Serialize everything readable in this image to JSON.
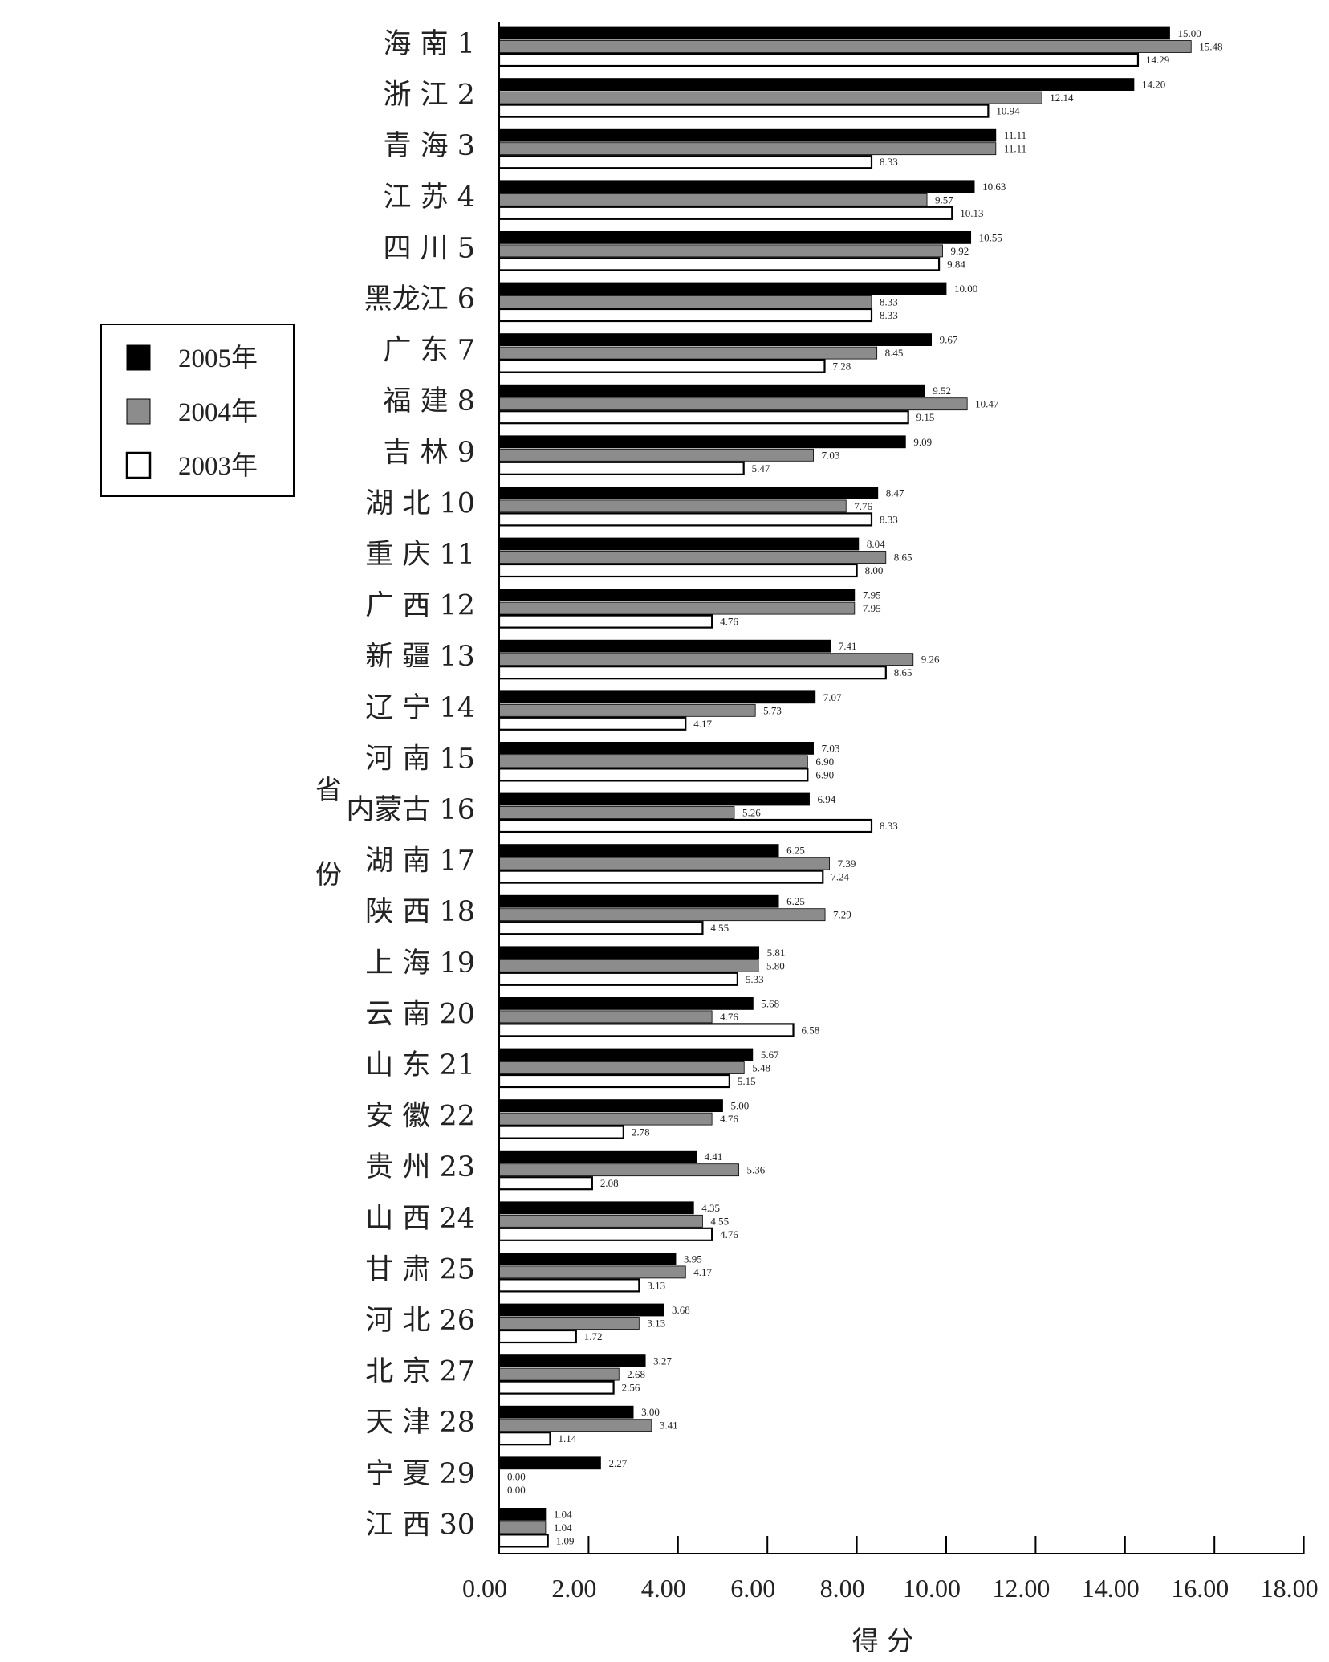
{
  "chart_data": {
    "type": "bar",
    "orientation": "horizontal",
    "ylabel": "省 份",
    "xlabel": "得 分",
    "xlim": [
      0,
      18
    ],
    "xticks": [
      "0.00",
      "2.00",
      "4.00",
      "6.00",
      "8.00",
      "10.00",
      "12.00",
      "14.00",
      "16.00",
      "18.00"
    ],
    "legend_position": "left",
    "grid": false,
    "categories": [
      "海 南 1",
      "浙 江 2",
      "青 海 3",
      "江 苏 4",
      "四 川 5",
      "黑龙江 6",
      "广 东 7",
      "福 建 8",
      "吉 林 9",
      "湖 北 10",
      "重 庆 11",
      "广 西 12",
      "新 疆 13",
      "辽 宁 14",
      "河 南 15",
      "内蒙古 16",
      "湖 南 17",
      "陕 西 18",
      "上 海 19",
      "云 南 20",
      "山 东 21",
      "安 徽 22",
      "贵 州 23",
      "山 西 24",
      "甘 肃 25",
      "河 北 26",
      "北 京 27",
      "天 津 28",
      "宁 夏 29",
      "江 西 30"
    ],
    "series": [
      {
        "name": "2005年",
        "color": "#000000",
        "values": [
          15.0,
          14.2,
          11.11,
          10.63,
          10.55,
          10.0,
          9.67,
          9.52,
          9.09,
          8.47,
          8.04,
          7.95,
          7.41,
          7.07,
          7.03,
          6.94,
          6.25,
          6.25,
          5.81,
          5.68,
          5.67,
          5.0,
          4.41,
          4.35,
          3.95,
          3.68,
          3.27,
          3.0,
          2.27,
          1.04
        ],
        "labels": [
          "15.00",
          "14.20",
          "11.11",
          "10.63",
          "10.55",
          "10.00",
          "9.67",
          "9.52",
          "9.09",
          "8.47",
          "8.04",
          "7.95",
          "7.41",
          "7.07",
          "7.03",
          "6.94",
          "6.25",
          "6.25",
          "5.81",
          "5.68",
          "5.67",
          "5.00",
          "4.41",
          "4.35",
          "3.95",
          "3.68",
          "3.27",
          "3.00",
          "2.27",
          "1.04"
        ]
      },
      {
        "name": "2004年",
        "color": "#8c8c8c",
        "values": [
          15.48,
          12.14,
          11.11,
          9.57,
          9.92,
          8.33,
          8.45,
          10.47,
          7.03,
          7.76,
          8.65,
          7.95,
          9.26,
          5.73,
          6.9,
          5.26,
          7.39,
          7.29,
          5.8,
          4.76,
          5.48,
          4.76,
          5.36,
          4.55,
          4.17,
          3.13,
          2.68,
          3.41,
          0.0,
          1.04
        ],
        "labels": [
          "15.48",
          "12.14",
          "11.11",
          "9.57",
          "9.92",
          "8.33",
          "8.45",
          "10.47",
          "7.03",
          "7.76",
          "8.65",
          "7.95",
          "9.26",
          "5.73",
          "6.90",
          "5.26",
          "7.39",
          "7.29",
          "5.80",
          "4.76",
          "5.48",
          "4.76",
          "5.36",
          "4.55",
          "4.17",
          "3.13",
          "2.68",
          "3.41",
          "0.00",
          "1.04"
        ]
      },
      {
        "name": "2003年",
        "color": "#ffffff",
        "values": [
          14.29,
          10.94,
          8.33,
          10.13,
          9.84,
          8.33,
          7.28,
          9.15,
          5.47,
          8.33,
          8.0,
          4.76,
          8.65,
          4.17,
          6.9,
          8.33,
          7.24,
          4.55,
          5.33,
          6.58,
          5.15,
          2.78,
          2.08,
          4.76,
          3.13,
          1.72,
          2.56,
          1.14,
          0.0,
          1.09
        ],
        "labels": [
          "14.29",
          "10.94",
          "8.33",
          "10.13",
          "9.84",
          "8.33",
          "7.28",
          "9.15",
          "5.47",
          "8.33",
          "8.00",
          "4.76",
          "8.65",
          "4.17",
          "6.90",
          "8.33",
          "7.24",
          "4.55",
          "5.33",
          "6.58",
          "5.15",
          "2.78",
          "2.08",
          "4.76",
          "3.13",
          "1.72",
          "2.56",
          "1.14",
          "0.00",
          "1.09"
        ]
      }
    ]
  }
}
